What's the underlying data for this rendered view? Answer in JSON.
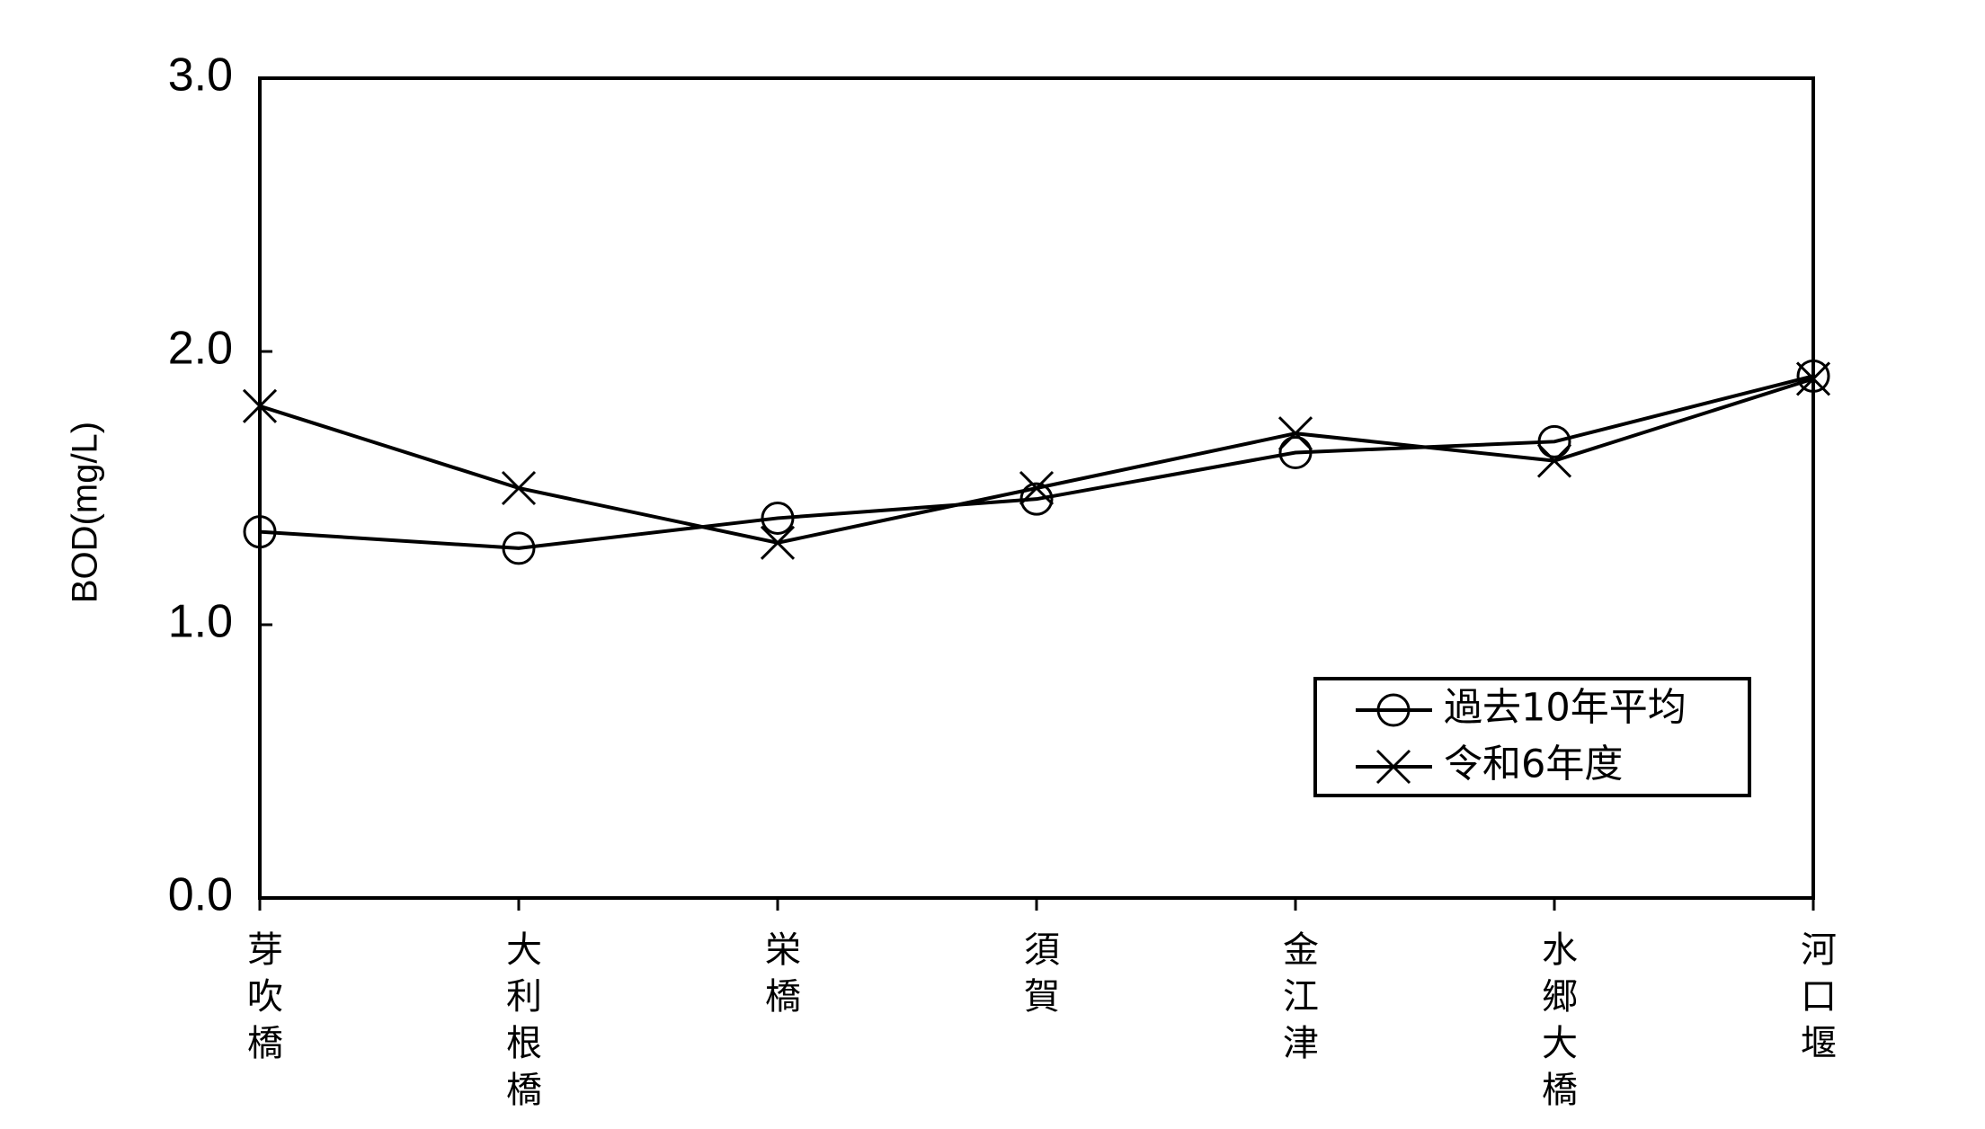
{
  "chart_data": {
    "type": "line",
    "y_label": "BOD(mg/L)",
    "categories": [
      "芽吹橋",
      "大利根橋",
      "栄橋",
      "須賀",
      "金江津",
      "水郷大橋",
      "河口堰"
    ],
    "series": [
      {
        "name": "過去10年平均",
        "color": "#000000",
        "marker": "circle",
        "values": [
          1.34,
          1.28,
          1.39,
          1.46,
          1.63,
          1.67,
          1.91
        ]
      },
      {
        "name": "令和6年度",
        "color": "#000000",
        "marker": "x",
        "values": [
          1.8,
          1.5,
          1.3,
          1.5,
          1.7,
          1.6,
          1.9
        ]
      }
    ],
    "ylim": [
      0,
      3
    ],
    "yticks": [
      {
        "value": 0,
        "label": "0.0"
      },
      {
        "value": 1,
        "label": "1.0"
      },
      {
        "value": 2,
        "label": "2.0"
      },
      {
        "value": 3,
        "label": "3.0"
      }
    ],
    "grid": false,
    "legend": "lower right"
  }
}
